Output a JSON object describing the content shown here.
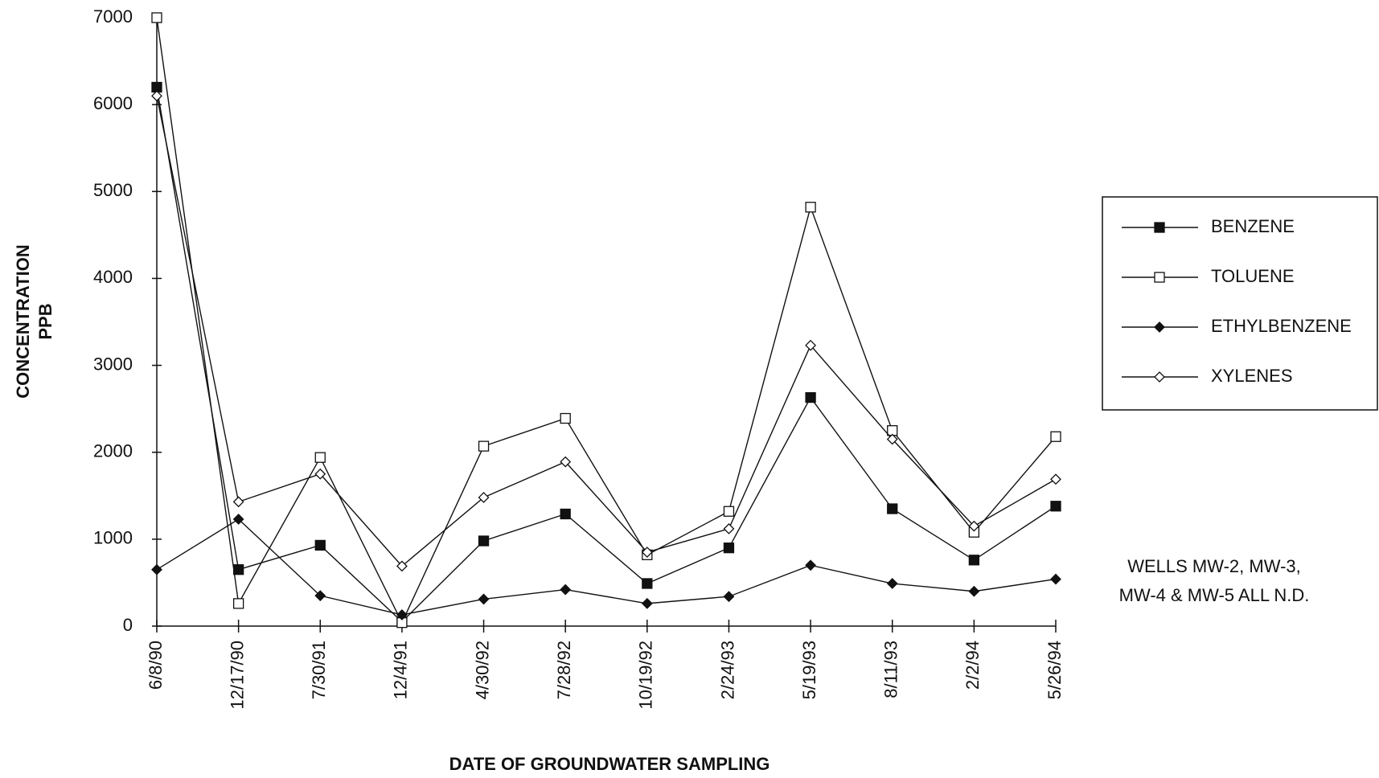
{
  "chart_data": {
    "type": "line",
    "x_label": "DATE OF GROUNDWATER SAMPLING",
    "y_label_lines": [
      "CONCENTRATION",
      "PPB"
    ],
    "annotation_lines": [
      "WELLS  MW-2, MW-3,",
      "MW-4 & MW-5  ALL N.D."
    ],
    "categories": [
      "6/8/90",
      "12/17/90",
      "7/30/91",
      "12/4/91",
      "4/30/92",
      "7/28/92",
      "10/19/92",
      "2/24/93",
      "5/19/93",
      "8/11/93",
      "2/2/94",
      "5/26/94"
    ],
    "series": [
      {
        "name": "BENZENE",
        "color": "#111111",
        "marker": "square-filled",
        "values": [
          6200,
          650,
          930,
          50,
          980,
          1290,
          490,
          900,
          2630,
          1350,
          760,
          1380
        ]
      },
      {
        "name": "TOLUENE",
        "color": "#111111",
        "marker": "square-open",
        "values": [
          7000,
          260,
          1940,
          40,
          2070,
          2390,
          820,
          1320,
          4820,
          2250,
          1080,
          2180
        ]
      },
      {
        "name": "ETHYLBENZENE",
        "color": "#111111",
        "marker": "diamond-filled",
        "values": [
          650,
          1230,
          350,
          130,
          310,
          420,
          260,
          340,
          700,
          490,
          400,
          540
        ]
      },
      {
        "name": "XYLENES",
        "color": "#111111",
        "marker": "diamond-open",
        "values": [
          6100,
          1430,
          1750,
          690,
          1480,
          1890,
          850,
          1120,
          3230,
          2150,
          1150,
          1690
        ]
      }
    ],
    "ylim": [
      0,
      7000
    ],
    "yticks": [
      0,
      1000,
      2000,
      3000,
      4000,
      5000,
      6000,
      7000
    ],
    "legend": "right"
  }
}
